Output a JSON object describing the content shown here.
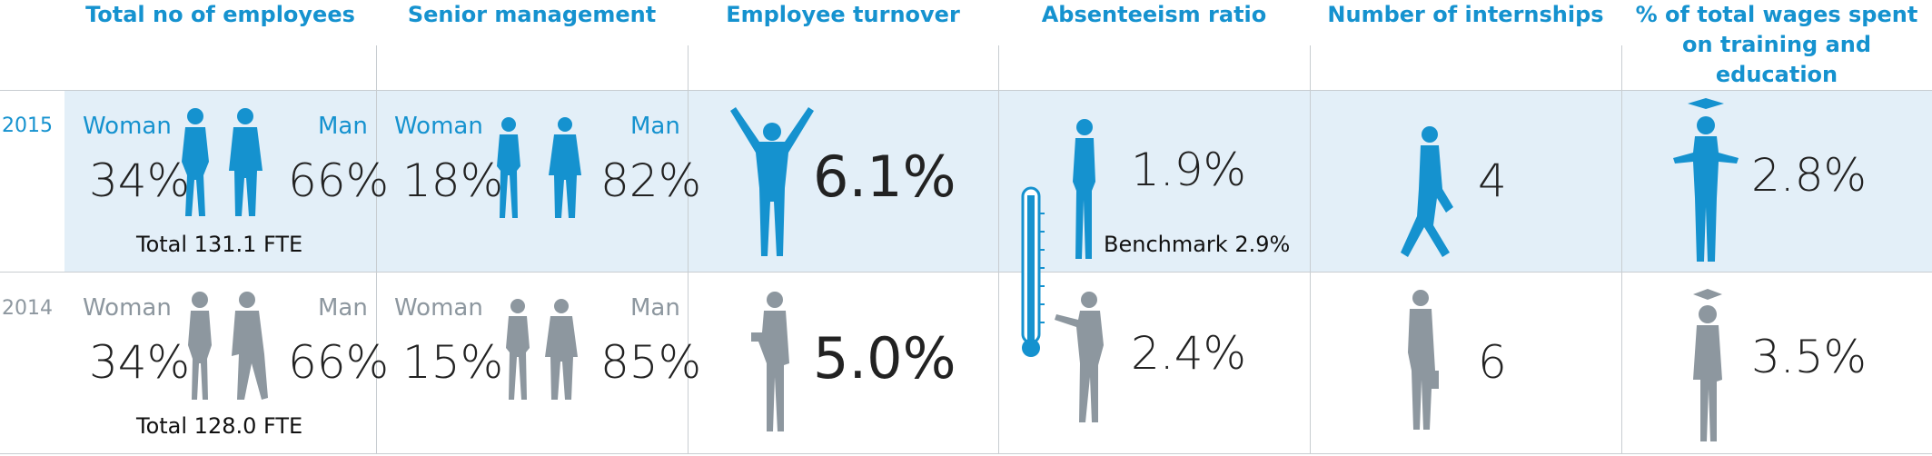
{
  "headers": {
    "employees": "Total no of employees",
    "senior": "Senior management",
    "turnover": "Employee turnover",
    "absenteeism": "Absenteeism ratio",
    "internships": "Number of internships",
    "wages_line1": "% of total wages spent",
    "wages_line2": "on training and education"
  },
  "rows": {
    "y2015": {
      "year": "2015",
      "emp_woman_label": "Woman",
      "emp_man_label": "Man",
      "emp_woman": "34%",
      "emp_man": "66%",
      "emp_total": "Total 131.1 FTE",
      "sen_woman_label": "Woman",
      "sen_man_label": "Man",
      "sen_woman": "18%",
      "sen_man": "82%",
      "turnover": "6.1%",
      "absenteeism": "1.9%",
      "benchmark": "Benchmark 2.9%",
      "internships": "4",
      "wages": "2.8%"
    },
    "y2014": {
      "year": "2014",
      "emp_woman_label": "Woman",
      "emp_man_label": "Man",
      "emp_woman": "34%",
      "emp_man": "66%",
      "emp_total": "Total 128.0 FTE",
      "sen_woman_label": "Woman",
      "sen_man_label": "Man",
      "sen_woman": "15%",
      "sen_man": "85%",
      "turnover": "5.0%",
      "absenteeism": "2.4%",
      "internships": "6",
      "wages": "3.5%"
    }
  },
  "colors": {
    "accent": "#1592cf",
    "grey": "#8d979f",
    "band": "#e3eff8",
    "line": "#c8cdd1"
  },
  "icons": [
    "woman-figure-icon",
    "man-figure-icon",
    "arms-raised-figure-icon",
    "thermometer-icon",
    "graduation-cap-icon"
  ]
}
